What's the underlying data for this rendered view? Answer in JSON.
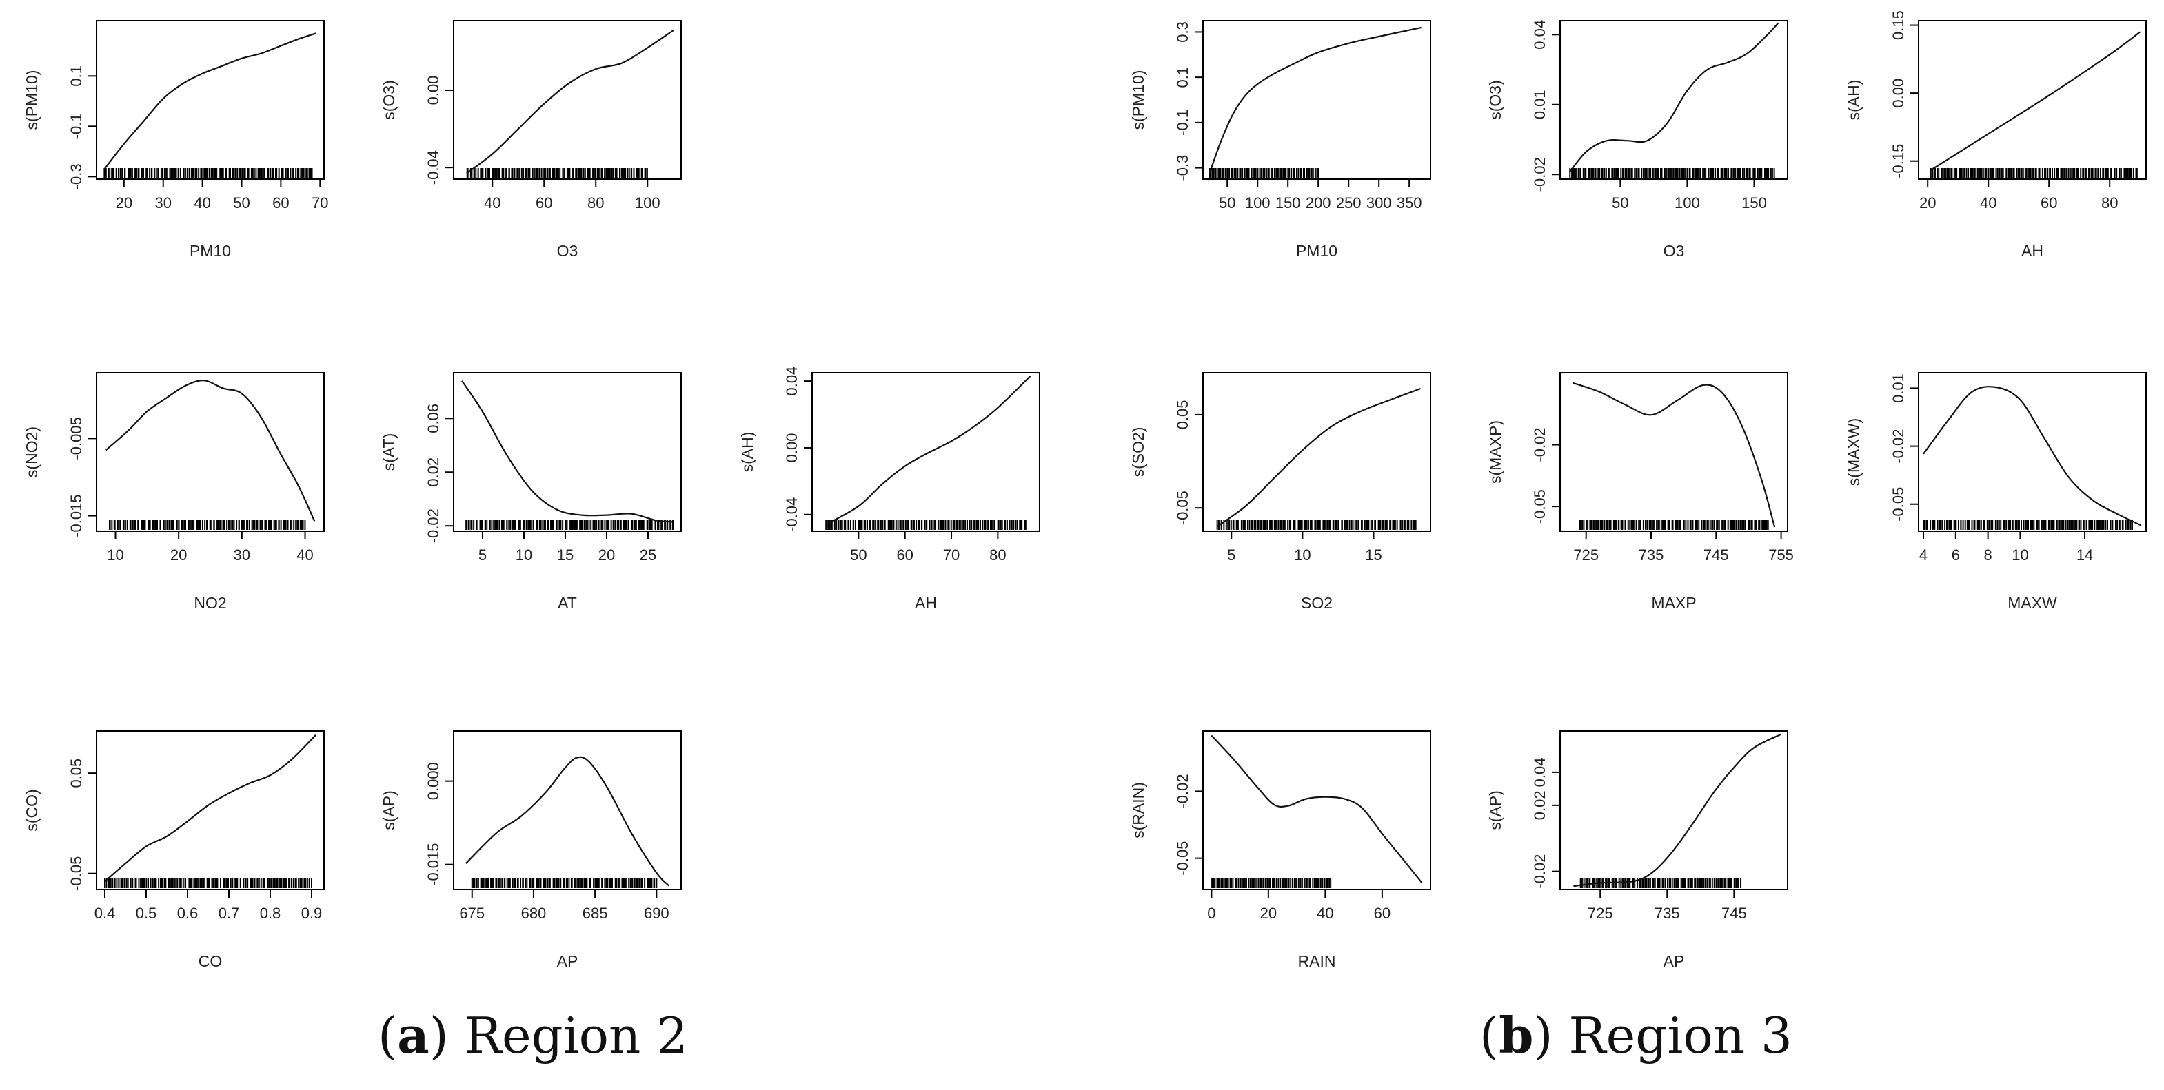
{
  "captions": [
    {
      "letter": "a",
      "label": "Region 2"
    },
    {
      "letter": "b",
      "label": "Region 3"
    }
  ],
  "chart_data": [
    {
      "type": "line",
      "region": "a",
      "xlabel": "PM10",
      "ylabel": "s(PM10)",
      "xlim": [
        13,
        71
      ],
      "ylim": [
        -0.31,
        0.32
      ],
      "xticks": [
        20,
        30,
        40,
        50,
        60,
        70
      ],
      "xtick_labels": [
        "20",
        "30",
        "40",
        "50",
        "60",
        "70"
      ],
      "yticks": [
        -0.3,
        -0.1,
        0.1
      ],
      "ytick_labels": [
        "-0.3",
        "-0.1",
        "0.1"
      ],
      "x": [
        15,
        20,
        25,
        30,
        35,
        40,
        45,
        50,
        55,
        60,
        65,
        69
      ],
      "y": [
        -0.27,
        -0.17,
        -0.08,
        0.01,
        0.07,
        0.11,
        0.14,
        0.17,
        0.19,
        0.22,
        0.25,
        0.27
      ],
      "rug": {
        "from": 15,
        "to": 68
      }
    },
    {
      "type": "line",
      "region": "a",
      "xlabel": "O3",
      "ylabel": "s(O3)",
      "xlim": [
        25,
        113
      ],
      "ylim": [
        -0.046,
        0.036
      ],
      "xticks": [
        40,
        60,
        80,
        100
      ],
      "xtick_labels": [
        "40",
        "60",
        "80",
        "100"
      ],
      "yticks": [
        -0.04,
        0.0
      ],
      "ytick_labels": [
        "-0.04",
        "0.00"
      ],
      "x": [
        30,
        40,
        50,
        60,
        70,
        80,
        90,
        100,
        110
      ],
      "y": [
        -0.043,
        -0.033,
        -0.02,
        -0.007,
        0.004,
        0.011,
        0.014,
        0.022,
        0.031
      ],
      "rug": {
        "from": 30,
        "to": 100
      }
    },
    {
      "type": "line",
      "region": "a",
      "xlabel": "NO2",
      "ylabel": "s(NO2)",
      "xlim": [
        7,
        43
      ],
      "ylim": [
        -0.017,
        0.0035
      ],
      "xticks": [
        10,
        20,
        30,
        40
      ],
      "xtick_labels": [
        "10",
        "20",
        "30",
        "40"
      ],
      "yticks": [
        -0.015,
        -0.005
      ],
      "ytick_labels": [
        "-0.015",
        "-0.005"
      ],
      "x": [
        8.5,
        12,
        15,
        18,
        21,
        24,
        27,
        30,
        33,
        36,
        39,
        41.5
      ],
      "y": [
        -0.0065,
        -0.004,
        -0.0015,
        0.0002,
        0.0018,
        0.0025,
        0.0015,
        0.0008,
        -0.0022,
        -0.0068,
        -0.0112,
        -0.0157
      ],
      "rug": {
        "from": 9,
        "to": 40
      }
    },
    {
      "type": "line",
      "region": "a",
      "xlabel": "AT",
      "ylabel": "s(AT)",
      "xlim": [
        1.5,
        29
      ],
      "ylim": [
        -0.024,
        0.094
      ],
      "xticks": [
        5,
        10,
        15,
        20,
        25
      ],
      "xtick_labels": [
        "5",
        "10",
        "15",
        "20",
        "25"
      ],
      "yticks": [
        -0.02,
        0.02,
        0.06
      ],
      "ytick_labels": [
        "-0.02",
        "0.02",
        "0.06"
      ],
      "x": [
        2.5,
        5,
        8,
        11,
        14,
        17,
        20,
        23,
        26,
        28
      ],
      "y": [
        0.088,
        0.065,
        0.032,
        0.006,
        -0.008,
        -0.012,
        -0.012,
        -0.011,
        -0.016,
        -0.017
      ],
      "rug": {
        "from": 3,
        "to": 28
      }
    },
    {
      "type": "line",
      "region": "a",
      "xlabel": "AH",
      "ylabel": "s(AH)",
      "xlim": [
        40,
        89
      ],
      "ylim": [
        -0.05,
        0.045
      ],
      "xticks": [
        50,
        60,
        70,
        80
      ],
      "xtick_labels": [
        "50",
        "60",
        "70",
        "80"
      ],
      "yticks": [
        -0.04,
        0.0,
        0.04
      ],
      "ytick_labels": [
        "-0.04",
        "0.00",
        "0.04"
      ],
      "x": [
        43,
        50,
        55,
        60,
        65,
        70,
        75,
        80,
        87
      ],
      "y": [
        -0.046,
        -0.035,
        -0.022,
        -0.011,
        -0.003,
        0.004,
        0.013,
        0.024,
        0.043
      ],
      "rug": {
        "from": 43,
        "to": 86
      }
    },
    {
      "type": "line",
      "region": "a",
      "xlabel": "CO",
      "ylabel": "s(CO)",
      "xlim": [
        0.38,
        0.93
      ],
      "ylim": [
        -0.066,
        0.092
      ],
      "xticks": [
        0.4,
        0.5,
        0.6,
        0.7,
        0.8,
        0.9
      ],
      "xtick_labels": [
        "0.4",
        "0.5",
        "0.6",
        "0.7",
        "0.8",
        "0.9"
      ],
      "yticks": [
        -0.05,
        0.05
      ],
      "ytick_labels": [
        "-0.05",
        "0.05"
      ],
      "x": [
        0.4,
        0.45,
        0.5,
        0.55,
        0.6,
        0.65,
        0.7,
        0.75,
        0.8,
        0.85,
        0.91
      ],
      "y": [
        -0.058,
        -0.04,
        -0.023,
        -0.013,
        0.002,
        0.018,
        0.03,
        0.04,
        0.048,
        0.063,
        0.088
      ],
      "rug": {
        "from": 0.4,
        "to": 0.9
      }
    },
    {
      "type": "line",
      "region": "a",
      "xlabel": "AP",
      "ylabel": "s(AP)",
      "xlim": [
        673.5,
        692
      ],
      "ylim": [
        -0.0195,
        0.009
      ],
      "xticks": [
        675,
        680,
        685,
        690
      ],
      "xtick_labels": [
        "675",
        "680",
        "685",
        "690"
      ],
      "yticks": [
        -0.015,
        0.0
      ],
      "ytick_labels": [
        "-0.015",
        "0.000"
      ],
      "x": [
        674.5,
        677,
        679,
        681,
        682.5,
        683.5,
        684.5,
        686,
        688,
        690,
        691
      ],
      "y": [
        -0.0148,
        -0.0093,
        -0.0063,
        -0.002,
        0.0022,
        0.0042,
        0.0035,
        -0.0012,
        -0.0095,
        -0.0165,
        -0.0188
      ],
      "rug": {
        "from": 675,
        "to": 690
      }
    },
    {
      "type": "line",
      "region": "b",
      "xlabel": "PM10",
      "ylabel": "s(PM10)",
      "xlim": [
        10,
        385
      ],
      "ylim": [
        -0.35,
        0.35
      ],
      "xticks": [
        50,
        100,
        150,
        200,
        250,
        300,
        350
      ],
      "xtick_labels": [
        "50",
        "100",
        "150",
        "200",
        "250",
        "300",
        "350"
      ],
      "yticks": [
        -0.3,
        -0.1,
        0.1,
        0.3
      ],
      "ytick_labels": [
        "-0.3",
        "-0.1",
        "0.1",
        "0.3"
      ],
      "x": [
        20,
        40,
        60,
        80,
        100,
        130,
        160,
        200,
        250,
        300,
        370
      ],
      "y": [
        -0.33,
        -0.18,
        -0.06,
        0.02,
        0.07,
        0.12,
        0.16,
        0.21,
        0.25,
        0.28,
        0.32
      ],
      "rug": {
        "from": 20,
        "to": 200
      }
    },
    {
      "type": "line",
      "region": "b",
      "xlabel": "O3",
      "ylabel": "s(O3)",
      "xlim": [
        5,
        175
      ],
      "ylim": [
        -0.022,
        0.046
      ],
      "xticks": [
        50,
        100,
        150
      ],
      "xtick_labels": [
        "50",
        "100",
        "150"
      ],
      "yticks": [
        -0.02,
        0.01,
        0.04
      ],
      "ytick_labels": [
        "-0.02",
        "0.01",
        "0.04"
      ],
      "x": [
        12,
        25,
        40,
        55,
        70,
        85,
        100,
        115,
        130,
        145,
        160,
        168
      ],
      "y": [
        -0.019,
        -0.01,
        -0.0055,
        -0.0055,
        -0.0055,
        0.002,
        0.016,
        0.025,
        0.028,
        0.032,
        0.04,
        0.045
      ],
      "rug": {
        "from": 12,
        "to": 165
      }
    },
    {
      "type": "line",
      "region": "b",
      "xlabel": "AH",
      "ylabel": "s(AH)",
      "xlim": [
        17,
        92
      ],
      "ylim": [
        -0.19,
        0.16
      ],
      "xticks": [
        20,
        40,
        60,
        80
      ],
      "xtick_labels": [
        "20",
        "40",
        "60",
        "80"
      ],
      "yticks": [
        -0.15,
        0.0,
        0.15
      ],
      "ytick_labels": [
        "-0.15",
        "0.00",
        "0.15"
      ],
      "x": [
        21,
        40,
        60,
        80,
        90
      ],
      "y": [
        -0.17,
        -0.09,
        -0.005,
        0.085,
        0.135
      ],
      "rug": {
        "from": 21,
        "to": 89
      }
    },
    {
      "type": "line",
      "region": "b",
      "xlabel": "SO2",
      "ylabel": "s(SO2)",
      "xlim": [
        3,
        19
      ],
      "ylim": [
        -0.075,
        0.095
      ],
      "xticks": [
        5,
        10,
        15
      ],
      "xtick_labels": [
        "5",
        "10",
        "15"
      ],
      "yticks": [
        -0.05,
        0.05
      ],
      "ytick_labels": [
        "-0.05",
        "0.05"
      ],
      "x": [
        4,
        6,
        8,
        10,
        12,
        14,
        16,
        18.3
      ],
      "y": [
        -0.07,
        -0.048,
        -0.018,
        0.012,
        0.037,
        0.053,
        0.065,
        0.078
      ],
      "rug": {
        "from": 4,
        "to": 18
      }
    },
    {
      "type": "line",
      "region": "b",
      "xlabel": "MAXP",
      "ylabel": "s(MAXP)",
      "xlim": [
        721,
        756
      ],
      "ylim": [
        -0.062,
        0.015
      ],
      "xticks": [
        725,
        735,
        745,
        755
      ],
      "xtick_labels": [
        "725",
        "735",
        "745",
        "755"
      ],
      "yticks": [
        -0.05,
        -0.02
      ],
      "ytick_labels": [
        "-0.05",
        "-0.02"
      ],
      "x": [
        723,
        727,
        731,
        735,
        739,
        743,
        746,
        749,
        752,
        754
      ],
      "y": [
        0.01,
        0.0058,
        -0.0005,
        -0.0055,
        0.0015,
        0.009,
        0.005,
        -0.011,
        -0.037,
        -0.06
      ],
      "rug": {
        "from": 724,
        "to": 753
      }
    },
    {
      "type": "line",
      "region": "b",
      "xlabel": "MAXW",
      "ylabel": "s(MAXW)",
      "xlim": [
        3.7,
        17.8
      ],
      "ylim": [
        -0.064,
        0.018
      ],
      "xticks": [
        4,
        6,
        8,
        10,
        14
      ],
      "xtick_labels": [
        "4",
        "6",
        "8",
        "10",
        "14"
      ],
      "yticks": [
        -0.05,
        -0.02,
        0.01
      ],
      "ytick_labels": [
        "-0.05",
        "-0.02",
        "0.01"
      ],
      "x": [
        4,
        5.5,
        7,
        8.5,
        10,
        11.5,
        13,
        14.5,
        16,
        17.5
      ],
      "y": [
        -0.024,
        -0.007,
        0.008,
        0.0105,
        0.004,
        -0.016,
        -0.036,
        -0.048,
        -0.055,
        -0.061
      ],
      "rug": {
        "from": 4,
        "to": 17
      }
    },
    {
      "type": "line",
      "region": "b",
      "xlabel": "RAIN",
      "ylabel": "s(RAIN)",
      "xlim": [
        -3,
        77
      ],
      "ylim": [
        -0.064,
        0.007
      ],
      "xticks": [
        0,
        20,
        40,
        60
      ],
      "xtick_labels": [
        "0",
        "20",
        "40",
        "60"
      ],
      "yticks": [
        -0.05,
        -0.02
      ],
      "ytick_labels": [
        "-0.05",
        "-0.02"
      ],
      "x": [
        0,
        8,
        16,
        22,
        27,
        33,
        40,
        47,
        53,
        60,
        67,
        74
      ],
      "y": [
        0.005,
        -0.006,
        -0.018,
        -0.026,
        -0.0265,
        -0.0235,
        -0.0225,
        -0.0235,
        -0.0275,
        -0.039,
        -0.05,
        -0.061
      ],
      "rug": {
        "from": 0,
        "to": 42
      }
    },
    {
      "type": "line",
      "region": "b",
      "xlabel": "AP",
      "ylabel": "s(AP)",
      "xlim": [
        719,
        753
      ],
      "ylim": [
        -0.031,
        0.065
      ],
      "xticks": [
        725,
        735,
        745
      ],
      "xtick_labels": [
        "725",
        "735",
        "745"
      ],
      "yticks": [
        -0.02,
        0.02,
        0.04
      ],
      "ytick_labels": [
        "-0.02",
        "0.02",
        "0.04"
      ],
      "x": [
        721,
        725,
        730,
        733,
        736,
        739,
        742,
        745,
        748,
        752
      ],
      "y": [
        -0.029,
        -0.027,
        -0.026,
        -0.02,
        -0.007,
        0.01,
        0.028,
        0.043,
        0.055,
        0.063
      ],
      "rug": {
        "from": 722,
        "to": 746
      }
    }
  ]
}
